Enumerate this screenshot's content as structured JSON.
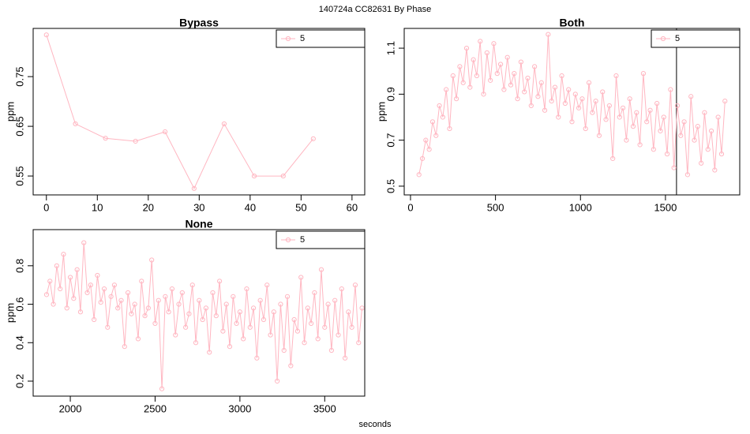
{
  "title": "140724a    CC82631    By Phase",
  "xlabel": "seconds",
  "chart_data": [
    {
      "type": "line",
      "title": "Bypass",
      "ylabel": "ppm",
      "x": [
        0,
        5.7,
        11.6,
        17.5,
        23.3,
        29,
        34.9,
        40.8,
        46.5,
        52.4
      ],
      "series": [
        {
          "name": "5",
          "color": "#ffb6c1",
          "values": [
            0.834,
            0.655,
            0.626,
            0.62,
            0.639,
            0.525,
            0.655,
            0.55,
            0.55,
            0.625
          ]
        }
      ],
      "xlim": [
        -2.6,
        62.5
      ],
      "xticks": [
        0,
        10,
        20,
        30,
        40,
        50,
        60
      ],
      "ylim": [
        0.512,
        0.847
      ],
      "yticks": [
        0.55,
        0.65,
        0.75
      ]
    },
    {
      "type": "line",
      "title": "Both",
      "ylabel": "ppm",
      "x": [
        50,
        70,
        90,
        110,
        130,
        150,
        170,
        190,
        210,
        230,
        250,
        270,
        290,
        310,
        330,
        350,
        370,
        390,
        410,
        430,
        450,
        470,
        490,
        510,
        530,
        550,
        570,
        590,
        610,
        630,
        650,
        670,
        690,
        710,
        730,
        750,
        770,
        790,
        810,
        830,
        850,
        870,
        890,
        910,
        930,
        950,
        970,
        990,
        1010,
        1030,
        1050,
        1070,
        1090,
        1110,
        1130,
        1150,
        1170,
        1190,
        1210,
        1230,
        1250,
        1270,
        1290,
        1310,
        1330,
        1350,
        1370,
        1390,
        1410,
        1430,
        1450,
        1470,
        1490,
        1510,
        1530,
        1550,
        1570,
        1590,
        1610,
        1630,
        1650,
        1670,
        1690,
        1710,
        1730,
        1750,
        1770,
        1790,
        1810,
        1830,
        1850
      ],
      "series": [
        {
          "name": "5",
          "color": "#ffb6c1",
          "values": [
            0.55,
            0.62,
            0.7,
            0.66,
            0.78,
            0.72,
            0.85,
            0.8,
            0.92,
            0.75,
            0.98,
            0.88,
            1.02,
            0.95,
            1.1,
            0.93,
            1.05,
            0.98,
            1.13,
            0.9,
            1.08,
            0.96,
            1.12,
            0.99,
            1.03,
            0.92,
            1.06,
            0.94,
            0.99,
            0.88,
            1.04,
            0.91,
            0.97,
            0.85,
            1.02,
            0.89,
            0.95,
            0.83,
            1.16,
            0.87,
            0.93,
            0.8,
            0.98,
            0.86,
            0.92,
            0.78,
            0.9,
            0.84,
            0.88,
            0.75,
            0.95,
            0.82,
            0.87,
            0.72,
            0.91,
            0.79,
            0.85,
            0.62,
            0.98,
            0.8,
            0.84,
            0.7,
            0.88,
            0.76,
            0.82,
            0.68,
            0.99,
            0.78,
            0.83,
            0.66,
            0.86,
            0.74,
            0.8,
            0.64,
            0.92,
            0.58,
            0.85,
            0.72,
            0.78,
            0.55,
            0.89,
            0.7,
            0.76,
            0.6,
            0.82,
            0.66,
            0.74,
            0.57,
            0.8,
            0.64,
            0.87
          ]
        }
      ],
      "vlines": [
        1565
      ],
      "xlim": [
        -37,
        1937
      ],
      "xticks": [
        0,
        500,
        1000,
        1500
      ],
      "ylim": [
        0.462,
        1.186
      ],
      "yticks": [
        0.5,
        0.7,
        0.9,
        1.1
      ]
    },
    {
      "type": "line",
      "title": "None",
      "ylabel": "ppm",
      "x": [
        1860,
        1880,
        1900,
        1920,
        1940,
        1960,
        1980,
        2000,
        2020,
        2040,
        2060,
        2080,
        2100,
        2120,
        2140,
        2160,
        2180,
        2200,
        2220,
        2240,
        2260,
        2280,
        2300,
        2320,
        2340,
        2360,
        2380,
        2400,
        2420,
        2440,
        2460,
        2480,
        2500,
        2520,
        2540,
        2560,
        2580,
        2600,
        2620,
        2640,
        2660,
        2680,
        2700,
        2720,
        2740,
        2760,
        2780,
        2800,
        2820,
        2840,
        2860,
        2880,
        2900,
        2920,
        2940,
        2960,
        2980,
        3000,
        3020,
        3040,
        3060,
        3080,
        3100,
        3120,
        3140,
        3160,
        3180,
        3200,
        3220,
        3240,
        3260,
        3280,
        3300,
        3320,
        3340,
        3360,
        3380,
        3400,
        3420,
        3440,
        3460,
        3480,
        3500,
        3520,
        3540,
        3560,
        3580,
        3600,
        3620,
        3640,
        3660,
        3680,
        3700,
        3720
      ],
      "series": [
        {
          "name": "5",
          "color": "#ffb6c1",
          "values": [
            0.65,
            0.72,
            0.6,
            0.8,
            0.68,
            0.86,
            0.58,
            0.74,
            0.63,
            0.78,
            0.56,
            0.92,
            0.66,
            0.7,
            0.52,
            0.75,
            0.61,
            0.68,
            0.48,
            0.64,
            0.7,
            0.58,
            0.62,
            0.38,
            0.66,
            0.55,
            0.6,
            0.42,
            0.72,
            0.54,
            0.58,
            0.83,
            0.5,
            0.62,
            0.16,
            0.64,
            0.56,
            0.68,
            0.44,
            0.6,
            0.66,
            0.48,
            0.55,
            0.7,
            0.4,
            0.62,
            0.52,
            0.58,
            0.35,
            0.66,
            0.54,
            0.72,
            0.46,
            0.6,
            0.38,
            0.64,
            0.5,
            0.56,
            0.42,
            0.68,
            0.48,
            0.58,
            0.32,
            0.62,
            0.52,
            0.7,
            0.44,
            0.56,
            0.2,
            0.6,
            0.36,
            0.64,
            0.28,
            0.52,
            0.46,
            0.74,
            0.4,
            0.58,
            0.5,
            0.66,
            0.42,
            0.78,
            0.48,
            0.6,
            0.36,
            0.62,
            0.44,
            0.68,
            0.32,
            0.56,
            0.48,
            0.7,
            0.4,
            0.58
          ]
        }
      ],
      "xlim": [
        1781,
        3736
      ],
      "xticks": [
        2000,
        2500,
        3000,
        3500
      ],
      "ylim": [
        0.122,
        0.988
      ],
      "yticks": [
        0.2,
        0.4,
        0.6,
        0.8
      ]
    }
  ]
}
